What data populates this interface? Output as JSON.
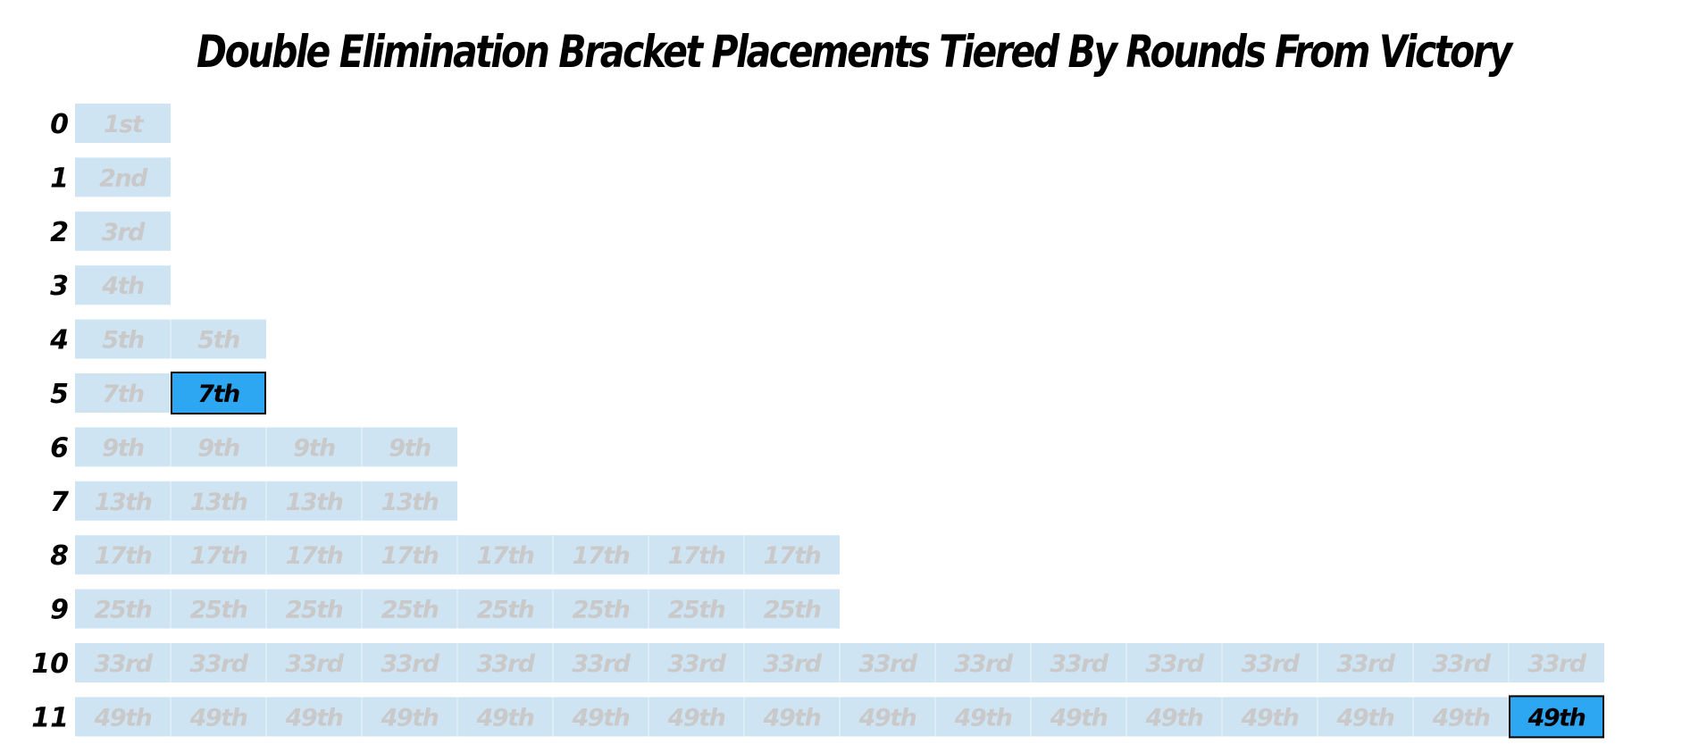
{
  "title": "Double Elimination Bracket Placements Tiered By Rounds From Victory",
  "colors": {
    "cell": "#cfe4f3",
    "highlight": "#2ea7f2",
    "highlight_border": "#000000",
    "cell_text": "#c9c9c9",
    "highlight_text": "#000000"
  },
  "chart_data": {
    "type": "table",
    "title": "Double Elimination Bracket Placements Tiered By Rounds From Victory",
    "xlabel": "",
    "ylabel": "",
    "rows": [
      {
        "label": "0",
        "cells": [
          "1st"
        ],
        "highlight": []
      },
      {
        "label": "1",
        "cells": [
          "2nd"
        ],
        "highlight": []
      },
      {
        "label": "2",
        "cells": [
          "3rd"
        ],
        "highlight": []
      },
      {
        "label": "3",
        "cells": [
          "4th"
        ],
        "highlight": []
      },
      {
        "label": "4",
        "cells": [
          "5th",
          "5th"
        ],
        "highlight": []
      },
      {
        "label": "5",
        "cells": [
          "7th",
          "7th"
        ],
        "highlight": [
          1
        ]
      },
      {
        "label": "6",
        "cells": [
          "9th",
          "9th",
          "9th",
          "9th"
        ],
        "highlight": []
      },
      {
        "label": "7",
        "cells": [
          "13th",
          "13th",
          "13th",
          "13th"
        ],
        "highlight": []
      },
      {
        "label": "8",
        "cells": [
          "17th",
          "17th",
          "17th",
          "17th",
          "17th",
          "17th",
          "17th",
          "17th"
        ],
        "highlight": []
      },
      {
        "label": "9",
        "cells": [
          "25th",
          "25th",
          "25th",
          "25th",
          "25th",
          "25th",
          "25th",
          "25th"
        ],
        "highlight": []
      },
      {
        "label": "10",
        "cells": [
          "33rd",
          "33rd",
          "33rd",
          "33rd",
          "33rd",
          "33rd",
          "33rd",
          "33rd",
          "33rd",
          "33rd",
          "33rd",
          "33rd",
          "33rd",
          "33rd",
          "33rd",
          "33rd"
        ],
        "highlight": []
      },
      {
        "label": "11",
        "cells": [
          "49th",
          "49th",
          "49th",
          "49th",
          "49th",
          "49th",
          "49th",
          "49th",
          "49th",
          "49th",
          "49th",
          "49th",
          "49th",
          "49th",
          "49th",
          "49th"
        ],
        "highlight": [
          15
        ]
      }
    ]
  }
}
